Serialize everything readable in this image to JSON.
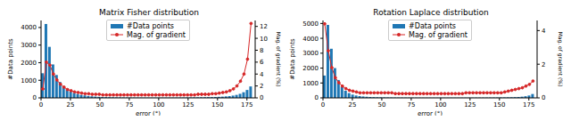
{
  "chart_data": [
    {
      "type": "bar",
      "title": "Matrix Fisher distribution",
      "x_label": "error (°)",
      "y_label": "#Data points",
      "y2_label": "Mag. of gradient (%)",
      "x": [
        1.5,
        4.5,
        7.5,
        10.5,
        13.5,
        16.5,
        19.5,
        22.5,
        25.5,
        28.5,
        31.5,
        34.5,
        37.5,
        40.5,
        43.5,
        46.5,
        49.5,
        52.5,
        55.5,
        58.5,
        61.5,
        64.5,
        67.5,
        70.5,
        73.5,
        76.5,
        79.5,
        82.5,
        85.5,
        88.5,
        91.5,
        94.5,
        97.5,
        100.5,
        103.5,
        106.5,
        109.5,
        112.5,
        115.5,
        118.5,
        121.5,
        124.5,
        127.5,
        130.5,
        133.5,
        136.5,
        139.5,
        142.5,
        145.5,
        148.5,
        151.5,
        154.5,
        157.5,
        160.5,
        163.5,
        166.5,
        169.5,
        172.5,
        175.5,
        178.5
      ],
      "series": [
        {
          "name": "#Data points",
          "type": "bar",
          "color": "#1f77b4",
          "values": [
            1400,
            4200,
            2900,
            1900,
            1300,
            900,
            650,
            480,
            360,
            280,
            220,
            170,
            140,
            110,
            90,
            75,
            60,
            50,
            45,
            40,
            35,
            30,
            28,
            25,
            22,
            20,
            18,
            17,
            16,
            15,
            15,
            14,
            14,
            14,
            15,
            15,
            16,
            17,
            18,
            20,
            22,
            24,
            26,
            28,
            30,
            33,
            36,
            40,
            45,
            50,
            60,
            70,
            85,
            100,
            130,
            170,
            230,
            320,
            450,
            650
          ]
        },
        {
          "name": "Mag. of gradient",
          "type": "line",
          "color": "#d62728",
          "marker": "o",
          "axis": "y2",
          "values": [
            1.5,
            6.0,
            5.5,
            4.0,
            3.0,
            2.3,
            1.8,
            1.4,
            1.2,
            1.0,
            0.9,
            0.8,
            0.7,
            0.7,
            0.6,
            0.6,
            0.6,
            0.5,
            0.5,
            0.5,
            0.5,
            0.5,
            0.5,
            0.5,
            0.5,
            0.5,
            0.5,
            0.5,
            0.5,
            0.5,
            0.5,
            0.5,
            0.5,
            0.5,
            0.5,
            0.5,
            0.5,
            0.5,
            0.5,
            0.5,
            0.5,
            0.5,
            0.5,
            0.5,
            0.6,
            0.6,
            0.6,
            0.6,
            0.7,
            0.7,
            0.8,
            0.9,
            1.0,
            1.2,
            1.5,
            2.0,
            2.8,
            4.0,
            6.5,
            12.5
          ]
        }
      ],
      "xlim": [
        0,
        182
      ],
      "xticks": [
        0,
        25,
        50,
        75,
        100,
        125,
        150,
        175
      ],
      "ylim": [
        0,
        4400
      ],
      "yticks": [
        0,
        1000,
        2000,
        3000,
        4000
      ],
      "y2lim": [
        0,
        13
      ],
      "y2ticks": [
        0,
        2,
        4,
        6,
        8,
        10,
        12
      ],
      "legend": "upper center"
    },
    {
      "type": "bar",
      "title": "Rotation Laplace distribution",
      "x_label": "error (°)",
      "y_label": "#Data points",
      "y2_label": "Mag. of gradient (%)",
      "x": [
        1.5,
        4.5,
        7.5,
        10.5,
        13.5,
        16.5,
        19.5,
        22.5,
        25.5,
        28.5,
        31.5,
        34.5,
        37.5,
        40.5,
        43.5,
        46.5,
        49.5,
        52.5,
        55.5,
        58.5,
        61.5,
        64.5,
        67.5,
        70.5,
        73.5,
        76.5,
        79.5,
        82.5,
        85.5,
        88.5,
        91.5,
        94.5,
        97.5,
        100.5,
        103.5,
        106.5,
        109.5,
        112.5,
        115.5,
        118.5,
        121.5,
        124.5,
        127.5,
        130.5,
        133.5,
        136.5,
        139.5,
        142.5,
        145.5,
        148.5,
        151.5,
        154.5,
        157.5,
        160.5,
        163.5,
        166.5,
        169.5,
        172.5,
        175.5,
        178.5
      ],
      "series": [
        {
          "name": "#Data points",
          "type": "bar",
          "color": "#1f77b4",
          "values": [
            1500,
            4900,
            3300,
            2000,
            1200,
            750,
            480,
            320,
            220,
            160,
            120,
            95,
            75,
            60,
            50,
            42,
            36,
            31,
            27,
            24,
            21,
            19,
            17,
            16,
            15,
            14,
            13,
            12,
            12,
            11,
            11,
            11,
            11,
            11,
            11,
            11,
            12,
            12,
            12,
            13,
            13,
            14,
            14,
            15,
            16,
            17,
            18,
            20,
            22,
            24,
            27,
            30,
            34,
            40,
            48,
            60,
            80,
            110,
            160,
            260
          ]
        },
        {
          "name": "Mag. of gradient",
          "type": "line",
          "color": "#d62728",
          "marker": "o",
          "axis": "y2",
          "values": [
            4.4,
            2.8,
            1.8,
            1.2,
            0.9,
            0.7,
            0.55,
            0.45,
            0.4,
            0.35,
            0.3,
            0.3,
            0.3,
            0.3,
            0.3,
            0.3,
            0.3,
            0.3,
            0.3,
            0.3,
            0.25,
            0.25,
            0.25,
            0.25,
            0.25,
            0.25,
            0.25,
            0.25,
            0.25,
            0.25,
            0.25,
            0.25,
            0.25,
            0.25,
            0.25,
            0.25,
            0.25,
            0.25,
            0.25,
            0.25,
            0.3,
            0.3,
            0.3,
            0.3,
            0.3,
            0.3,
            0.3,
            0.3,
            0.3,
            0.3,
            0.3,
            0.35,
            0.4,
            0.45,
            0.5,
            0.55,
            0.6,
            0.7,
            0.8,
            1.0
          ]
        }
      ],
      "xlim": [
        0,
        182
      ],
      "xticks": [
        0,
        25,
        50,
        75,
        100,
        125,
        150,
        175
      ],
      "ylim": [
        0,
        5200
      ],
      "yticks": [
        0,
        1000,
        2000,
        3000,
        4000,
        5000
      ],
      "y2lim": [
        0,
        4.6
      ],
      "y2ticks": [
        0,
        2,
        4
      ],
      "legend": "upper center"
    }
  ]
}
